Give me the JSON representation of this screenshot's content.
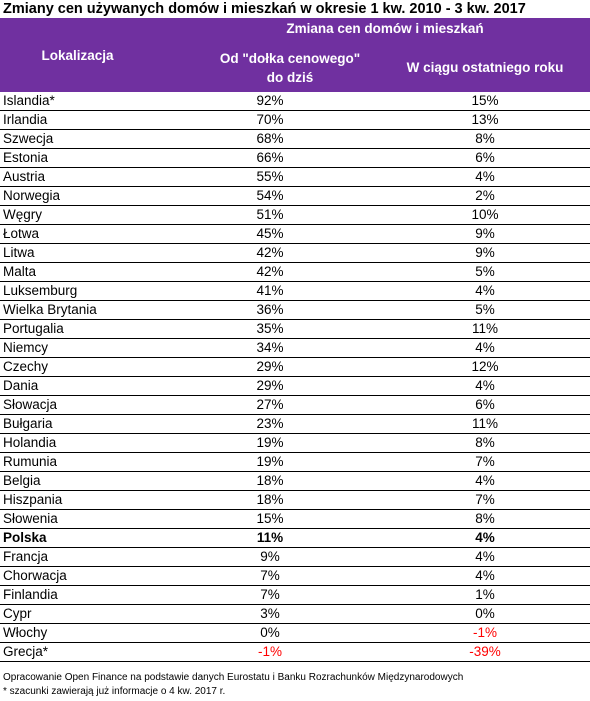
{
  "title": "Zmiany cen używanych domów i mieszkań w okresie 1 kw. 2010 - 3 kw. 2017",
  "header": {
    "group_label": "Zmiana cen domów i mieszkań",
    "location_label": "Lokalizacja",
    "col1_label": "Od \"dołka cenowego\"\ndo dziś",
    "col2_label": "W ciągu ostatniego roku"
  },
  "chart_data": {
    "type": "table",
    "title": "Zmiany cen używanych domów i mieszkań w okresie 1 kw. 2010 - 3 kw. 2017",
    "columns": [
      "Lokalizacja",
      "Od \"dołka cenowego\" do dziś",
      "W ciągu ostatniego roku"
    ],
    "rows": [
      {
        "location": "Islandia*",
        "since_low": "92%",
        "last_year": "15%"
      },
      {
        "location": "Irlandia",
        "since_low": "70%",
        "last_year": "13%"
      },
      {
        "location": "Szwecja",
        "since_low": "68%",
        "last_year": "8%"
      },
      {
        "location": "Estonia",
        "since_low": "66%",
        "last_year": "6%"
      },
      {
        "location": "Austria",
        "since_low": "55%",
        "last_year": "4%"
      },
      {
        "location": "Norwegia",
        "since_low": "54%",
        "last_year": "2%"
      },
      {
        "location": "Węgry",
        "since_low": "51%",
        "last_year": "10%"
      },
      {
        "location": "Łotwa",
        "since_low": "45%",
        "last_year": "9%"
      },
      {
        "location": "Litwa",
        "since_low": "42%",
        "last_year": "9%"
      },
      {
        "location": "Malta",
        "since_low": "42%",
        "last_year": "5%"
      },
      {
        "location": "Luksemburg",
        "since_low": "41%",
        "last_year": "4%"
      },
      {
        "location": "Wielka Brytania",
        "since_low": "36%",
        "last_year": "5%"
      },
      {
        "location": "Portugalia",
        "since_low": "35%",
        "last_year": "11%"
      },
      {
        "location": "Niemcy",
        "since_low": "34%",
        "last_year": "4%"
      },
      {
        "location": "Czechy",
        "since_low": "29%",
        "last_year": "12%"
      },
      {
        "location": "Dania",
        "since_low": "29%",
        "last_year": "4%"
      },
      {
        "location": "Słowacja",
        "since_low": "27%",
        "last_year": "6%"
      },
      {
        "location": "Bułgaria",
        "since_low": "23%",
        "last_year": "11%"
      },
      {
        "location": "Holandia",
        "since_low": "19%",
        "last_year": "8%"
      },
      {
        "location": "Rumunia",
        "since_low": "19%",
        "last_year": "7%"
      },
      {
        "location": "Belgia",
        "since_low": "18%",
        "last_year": "4%"
      },
      {
        "location": "Hiszpania",
        "since_low": "18%",
        "last_year": "7%"
      },
      {
        "location": "Słowenia",
        "since_low": "15%",
        "last_year": "8%"
      },
      {
        "location": "Polska",
        "since_low": "11%",
        "last_year": "4%",
        "highlight": true
      },
      {
        "location": "Francja",
        "since_low": "9%",
        "last_year": "4%"
      },
      {
        "location": "Chorwacja",
        "since_low": "7%",
        "last_year": "4%"
      },
      {
        "location": "Finlandia",
        "since_low": "7%",
        "last_year": "1%"
      },
      {
        "location": "Cypr",
        "since_low": "3%",
        "last_year": "0%"
      },
      {
        "location": "Włochy",
        "since_low": "0%",
        "last_year": "-1%"
      },
      {
        "location": "Grecja*",
        "since_low": "-1%",
        "last_year": "-39%"
      }
    ],
    "negative_color": "#ff0000",
    "header_color": "#7030a0"
  },
  "footer": {
    "source": "Opracowanie Open Finance na podstawie danych Eurostatu i Banku Rozrachunków Międzynarodowych",
    "note": "* szacunki zawierają już informacje o 4 kw. 2017 r."
  }
}
